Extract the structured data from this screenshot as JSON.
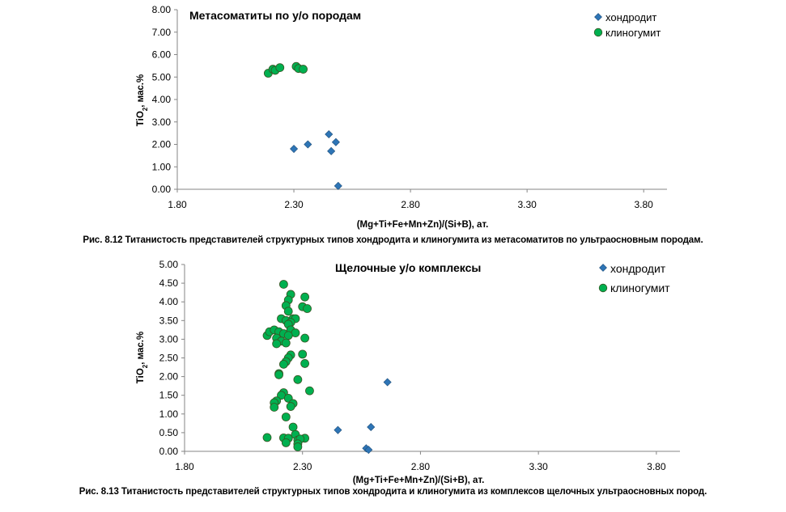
{
  "chart_data": [
    {
      "type": "scatter",
      "title": "Метасоматиты по у/о породам",
      "xlabel": "(Mg+Ti+Fe+Mn+Zn)/(Si+B),  ат.",
      "ylabel": "TiO2, мас.%",
      "xlim": [
        1.8,
        3.9
      ],
      "ylim": [
        0,
        8
      ],
      "xticks": [
        "1.80",
        "2.30",
        "2.80",
        "3.30",
        "3.80"
      ],
      "yticks": [
        "0.00",
        "1.00",
        "2.00",
        "3.00",
        "4.00",
        "5.00",
        "6.00",
        "7.00",
        "8.00"
      ],
      "grid": false,
      "legend": "top-right",
      "caption": "Рис. 8.12 Титанистость  представителей  структурных типов хондродита и клиногумита  из метасоматитов  по ультраосновным  породам.",
      "series": [
        {
          "name": "хондродит",
          "marker": "diamond",
          "color": "#2e75b6",
          "points": [
            [
              2.3,
              1.8
            ],
            [
              2.36,
              2.0
            ],
            [
              2.45,
              2.45
            ],
            [
              2.46,
              1.7
            ],
            [
              2.48,
              2.1
            ],
            [
              2.49,
              0.15
            ]
          ]
        },
        {
          "name": "клиногумит",
          "marker": "circle",
          "color": "#00b050",
          "points": [
            [
              2.19,
              5.17
            ],
            [
              2.21,
              5.35
            ],
            [
              2.22,
              5.3
            ],
            [
              2.24,
              5.42
            ],
            [
              2.31,
              5.47
            ],
            [
              2.32,
              5.38
            ],
            [
              2.34,
              5.35
            ]
          ]
        }
      ]
    },
    {
      "type": "scatter",
      "title": "Щелочные у/о комплексы",
      "xlabel": "(Mg+Ti+Fe+Mn+Zn)/(Si+B),  ат.",
      "ylabel": "TiO2, мас.%",
      "xlim": [
        1.8,
        3.9
      ],
      "ylim": [
        0,
        5
      ],
      "xticks": [
        "1.80",
        "2.30",
        "2.80",
        "3.30",
        "3.80"
      ],
      "yticks": [
        "0.00",
        "0.50",
        "1.00",
        "1.50",
        "2.00",
        "2.50",
        "3.00",
        "3.50",
        "4.00",
        "4.50",
        "5.00"
      ],
      "grid": false,
      "legend": "top-right",
      "caption": "Рис. 8.13 Титанистость  представителей  структурных типов хондродита и клиногумита  из комплексов  щелочных ультраосновных  пород.",
      "series": [
        {
          "name": "хондродит",
          "marker": "diamond",
          "color": "#2e75b6",
          "points": [
            [
              2.45,
              0.57
            ],
            [
              2.59,
              0.65
            ],
            [
              2.66,
              1.85
            ],
            [
              2.57,
              0.08
            ],
            [
              2.58,
              0.04
            ]
          ]
        },
        {
          "name": "клиногумит",
          "marker": "circle",
          "color": "#00b050",
          "points": [
            [
              2.22,
              4.47
            ],
            [
              2.25,
              4.2
            ],
            [
              2.24,
              4.05
            ],
            [
              2.23,
              3.9
            ],
            [
              2.24,
              3.75
            ],
            [
              2.31,
              4.13
            ],
            [
              2.3,
              3.87
            ],
            [
              2.32,
              3.82
            ],
            [
              2.21,
              3.55
            ],
            [
              2.23,
              3.5
            ],
            [
              2.26,
              3.55
            ],
            [
              2.27,
              3.55
            ],
            [
              2.25,
              3.45
            ],
            [
              2.24,
              3.4
            ],
            [
              2.15,
              3.1
            ],
            [
              2.16,
              3.2
            ],
            [
              2.18,
              3.25
            ],
            [
              2.2,
              3.2
            ],
            [
              2.22,
              3.15
            ],
            [
              2.25,
              3.25
            ],
            [
              2.27,
              3.17
            ],
            [
              2.24,
              3.1
            ],
            [
              2.31,
              3.03
            ],
            [
              2.19,
              3.03
            ],
            [
              2.21,
              2.95
            ],
            [
              2.19,
              2.88
            ],
            [
              2.23,
              2.9
            ],
            [
              2.25,
              2.58
            ],
            [
              2.24,
              2.5
            ],
            [
              2.23,
              2.4
            ],
            [
              2.22,
              2.33
            ],
            [
              2.3,
              2.6
            ],
            [
              2.31,
              2.35
            ],
            [
              2.28,
              1.92
            ],
            [
              2.2,
              2.08
            ],
            [
              2.2,
              2.05
            ],
            [
              2.33,
              1.62
            ],
            [
              2.22,
              1.57
            ],
            [
              2.21,
              1.5
            ],
            [
              2.24,
              1.42
            ],
            [
              2.19,
              1.35
            ],
            [
              2.18,
              1.3
            ],
            [
              2.18,
              1.18
            ],
            [
              2.26,
              1.28
            ],
            [
              2.25,
              1.2
            ],
            [
              2.23,
              0.92
            ],
            [
              2.26,
              0.65
            ],
            [
              2.15,
              0.37
            ],
            [
              2.22,
              0.36
            ],
            [
              2.24,
              0.35
            ],
            [
              2.27,
              0.45
            ],
            [
              2.28,
              0.3
            ],
            [
              2.31,
              0.35
            ],
            [
              2.29,
              0.33
            ],
            [
              2.28,
              0.2
            ],
            [
              2.23,
              0.23
            ],
            [
              2.28,
              0.12
            ]
          ]
        }
      ]
    }
  ]
}
